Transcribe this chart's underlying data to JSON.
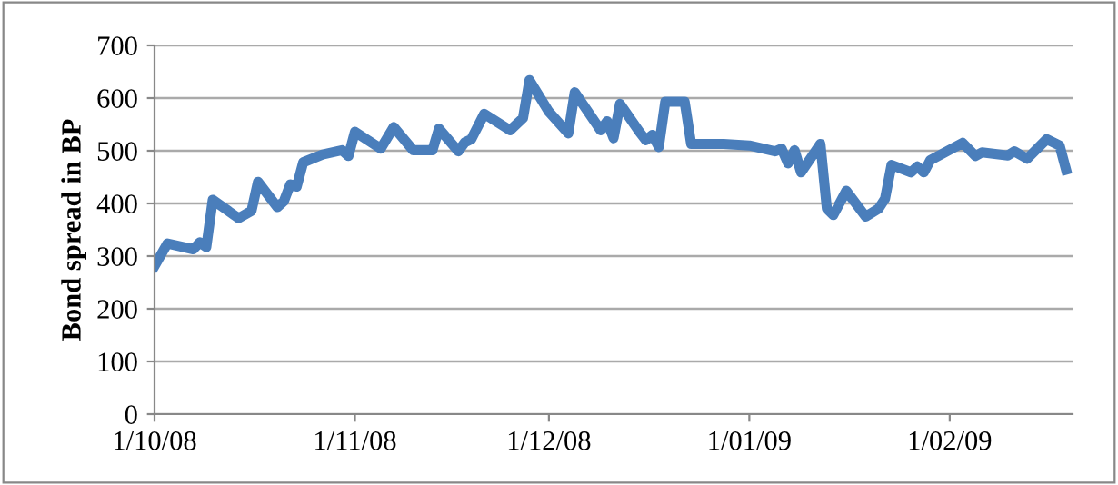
{
  "chart_data": {
    "type": "line",
    "ylabel": "Bond spread in BP",
    "x": [
      "2008-10-01",
      "2008-10-03",
      "2008-10-07",
      "2008-10-08",
      "2008-10-09",
      "2008-10-10",
      "2008-10-14",
      "2008-10-16",
      "2008-10-17",
      "2008-10-20",
      "2008-10-21",
      "2008-10-22",
      "2008-10-23",
      "2008-10-24",
      "2008-10-27",
      "2008-10-30",
      "2008-10-31",
      "2008-11-01",
      "2008-11-05",
      "2008-11-07",
      "2008-11-10",
      "2008-11-13",
      "2008-11-14",
      "2008-11-17",
      "2008-11-18",
      "2008-11-19",
      "2008-11-21",
      "2008-11-25",
      "2008-11-27",
      "2008-11-28",
      "2008-12-01",
      "2008-12-04",
      "2008-12-05",
      "2008-12-09",
      "2008-12-10",
      "2008-12-11",
      "2008-12-12",
      "2008-12-15",
      "2008-12-16",
      "2008-12-17",
      "2008-12-18",
      "2008-12-19",
      "2008-12-22",
      "2008-12-23",
      "2008-12-28",
      "2009-01-01",
      "2009-01-05",
      "2009-01-06",
      "2009-01-07",
      "2009-01-08",
      "2009-01-09",
      "2009-01-12",
      "2009-01-13",
      "2009-01-14",
      "2009-01-16",
      "2009-01-19",
      "2009-01-21",
      "2009-01-22",
      "2009-01-23",
      "2009-01-26",
      "2009-01-27",
      "2009-01-28",
      "2009-01-29",
      "2009-02-03",
      "2009-02-05",
      "2009-02-06",
      "2009-02-10",
      "2009-02-11",
      "2009-02-13",
      "2009-02-16",
      "2009-02-18",
      "2009-02-19"
    ],
    "series": [
      {
        "color": "#4a7ebb",
        "values": [
          281,
          324,
          313,
          326,
          317,
          407,
          372,
          386,
          441,
          393,
          404,
          436,
          432,
          478,
          493,
          501,
          490,
          536,
          504,
          545,
          501,
          501,
          542,
          499,
          516,
          522,
          570,
          539,
          562,
          634,
          574,
          533,
          611,
          539,
          556,
          524,
          589,
          536,
          520,
          530,
          507,
          593,
          593,
          513,
          513,
          510,
          499,
          504,
          476,
          501,
          459,
          513,
          390,
          378,
          424,
          375,
          390,
          409,
          473,
          459,
          470,
          459,
          482,
          515,
          490,
          497,
          491,
          499,
          485,
          522,
          510,
          464
        ]
      }
    ],
    "xlim": [
      "2008-10-01",
      "2009-02-20"
    ],
    "xticks": [
      {
        "value": "2008-10-01",
        "label": "1/10/08"
      },
      {
        "value": "2008-11-01",
        "label": "1/11/08"
      },
      {
        "value": "2008-12-01",
        "label": "1/12/08"
      },
      {
        "value": "2009-01-01",
        "label": "1/01/09"
      },
      {
        "value": "2009-02-01",
        "label": "1/02/09"
      }
    ],
    "ylim": [
      0,
      700
    ],
    "yticks": [
      0,
      100,
      200,
      300,
      400,
      500,
      600,
      700
    ],
    "grid": "y",
    "marker": "none",
    "line_style": "solid"
  }
}
